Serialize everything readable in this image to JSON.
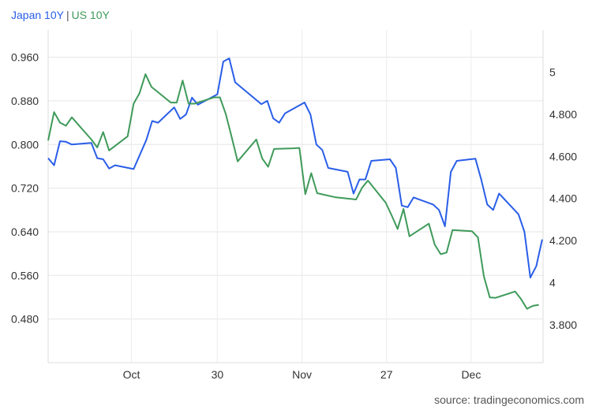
{
  "legend": {
    "japan": {
      "label": "Japan 10Y",
      "color": "#2a5ee8"
    },
    "us": {
      "label": "US 10Y",
      "color": "#3f9a5a"
    }
  },
  "source": "source: tradingeconomics.com",
  "chart_data": {
    "type": "line",
    "title": "",
    "grid": true,
    "legend_position": "top-left",
    "x_ticks": [
      {
        "label": "Oct",
        "x": 9.85
      },
      {
        "label": "30",
        "x": 20.0
      },
      {
        "label": "Nov",
        "x": 30.0
      },
      {
        "label": "27",
        "x": 40.0
      },
      {
        "label": "Dec",
        "x": 50.0
      }
    ],
    "xlim": [
      0,
      58.5
    ],
    "y_left": {
      "ylim": [
        0.4,
        1.01
      ],
      "ticks": [
        "0.480",
        "0.560",
        "0.640",
        "0.720",
        "0.800",
        "0.880",
        "0.960"
      ],
      "tick_values": [
        0.48,
        0.56,
        0.64,
        0.72,
        0.8,
        0.88,
        0.96
      ]
    },
    "y_right": {
      "ylim": [
        3.62,
        5.2
      ],
      "ticks": [
        "3.800",
        "4",
        "4.200",
        "4.400",
        "4.600",
        "4.800",
        "5"
      ],
      "tick_values": [
        3.8,
        4.0,
        4.2,
        4.4,
        4.6,
        4.8,
        5.0
      ]
    },
    "series": [
      {
        "name": "Japan 10Y",
        "axis": "left",
        "color": "#2a5ee8",
        "points": [
          [
            0.0,
            0.775
          ],
          [
            0.7,
            0.762
          ],
          [
            1.4,
            0.806
          ],
          [
            2.1,
            0.805
          ],
          [
            2.8,
            0.8
          ],
          [
            5.1,
            0.803
          ],
          [
            5.8,
            0.775
          ],
          [
            6.5,
            0.773
          ],
          [
            7.2,
            0.756
          ],
          [
            7.9,
            0.762
          ],
          [
            10.1,
            0.755
          ],
          [
            11.6,
            0.808
          ],
          [
            12.3,
            0.843
          ],
          [
            13.0,
            0.84
          ],
          [
            14.9,
            0.868
          ],
          [
            15.6,
            0.847
          ],
          [
            16.3,
            0.855
          ],
          [
            17.0,
            0.886
          ],
          [
            17.7,
            0.873
          ],
          [
            20.0,
            0.892
          ],
          [
            20.7,
            0.952
          ],
          [
            21.4,
            0.958
          ],
          [
            22.1,
            0.914
          ],
          [
            25.2,
            0.874
          ],
          [
            25.9,
            0.88
          ],
          [
            26.6,
            0.848
          ],
          [
            27.3,
            0.84
          ],
          [
            28.0,
            0.857
          ],
          [
            30.3,
            0.877
          ],
          [
            31.0,
            0.855
          ],
          [
            31.7,
            0.8
          ],
          [
            32.4,
            0.79
          ],
          [
            33.1,
            0.757
          ],
          [
            35.4,
            0.75
          ],
          [
            36.1,
            0.71
          ],
          [
            36.8,
            0.736
          ],
          [
            37.5,
            0.736
          ],
          [
            38.2,
            0.77
          ],
          [
            40.4,
            0.773
          ],
          [
            41.1,
            0.757
          ],
          [
            41.8,
            0.688
          ],
          [
            42.5,
            0.685
          ],
          [
            43.2,
            0.703
          ],
          [
            45.5,
            0.69
          ],
          [
            46.2,
            0.68
          ],
          [
            46.9,
            0.65
          ],
          [
            47.6,
            0.75
          ],
          [
            48.3,
            0.77
          ],
          [
            50.5,
            0.774
          ],
          [
            51.2,
            0.735
          ],
          [
            51.9,
            0.69
          ],
          [
            52.6,
            0.68
          ],
          [
            53.3,
            0.71
          ],
          [
            55.6,
            0.672
          ],
          [
            56.3,
            0.64
          ],
          [
            57.0,
            0.556
          ],
          [
            57.7,
            0.577
          ],
          [
            58.4,
            0.626
          ]
        ]
      },
      {
        "name": "US 10Y",
        "axis": "right",
        "color": "#3f9a5a",
        "points": [
          [
            0.0,
            4.675
          ],
          [
            0.7,
            4.81
          ],
          [
            1.4,
            4.76
          ],
          [
            2.1,
            4.745
          ],
          [
            2.8,
            4.785
          ],
          [
            5.1,
            4.68
          ],
          [
            5.8,
            4.642
          ],
          [
            6.5,
            4.715
          ],
          [
            7.2,
            4.628
          ],
          [
            9.4,
            4.695
          ],
          [
            10.1,
            4.85
          ],
          [
            10.8,
            4.9
          ],
          [
            11.5,
            4.99
          ],
          [
            12.2,
            4.93
          ],
          [
            14.5,
            4.855
          ],
          [
            15.2,
            4.855
          ],
          [
            15.9,
            4.96
          ],
          [
            16.6,
            4.85
          ],
          [
            17.3,
            4.85
          ],
          [
            19.6,
            4.88
          ],
          [
            20.3,
            4.88
          ],
          [
            21.0,
            4.8
          ],
          [
            21.7,
            4.69
          ],
          [
            22.4,
            4.576
          ],
          [
            24.6,
            4.68
          ],
          [
            25.3,
            4.59
          ],
          [
            26.0,
            4.55
          ],
          [
            26.7,
            4.635
          ],
          [
            29.0,
            4.638
          ],
          [
            29.7,
            4.64
          ],
          [
            30.4,
            4.42
          ],
          [
            31.1,
            4.52
          ],
          [
            31.8,
            4.425
          ],
          [
            34.0,
            4.405
          ],
          [
            36.4,
            4.395
          ],
          [
            37.1,
            4.45
          ],
          [
            37.8,
            4.485
          ],
          [
            39.9,
            4.38
          ],
          [
            40.6,
            4.32
          ],
          [
            41.3,
            4.255
          ],
          [
            42.0,
            4.35
          ],
          [
            42.7,
            4.22
          ],
          [
            45.0,
            4.28
          ],
          [
            45.7,
            4.18
          ],
          [
            46.4,
            4.135
          ],
          [
            47.1,
            4.143
          ],
          [
            47.8,
            4.25
          ],
          [
            50.1,
            4.244
          ],
          [
            50.8,
            4.215
          ],
          [
            51.5,
            4.03
          ],
          [
            52.2,
            3.93
          ],
          [
            52.9,
            3.928
          ],
          [
            55.2,
            3.958
          ],
          [
            55.9,
            3.922
          ],
          [
            56.6,
            3.876
          ],
          [
            57.3,
            3.89
          ],
          [
            58.0,
            3.895
          ]
        ]
      }
    ]
  }
}
